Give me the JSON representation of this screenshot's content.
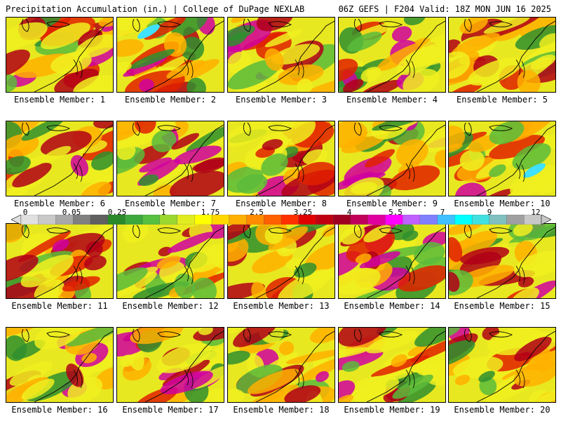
{
  "header": {
    "left_title": "Precipitation Accumulation (in.) | College of DuPage NEXLAB",
    "right_title": "06Z GEFS | F204 Valid: 18Z MON JUN 16 2025"
  },
  "members": [
    {
      "label": "Ensemble Member: 1"
    },
    {
      "label": "Ensemble Member: 2"
    },
    {
      "label": "Ensemble Member: 3"
    },
    {
      "label": "Ensemble Member: 4"
    },
    {
      "label": "Ensemble Member: 5"
    },
    {
      "label": "Ensemble Member: 6"
    },
    {
      "label": "Ensemble Member: 7"
    },
    {
      "label": "Ensemble Member: 8"
    },
    {
      "label": "Ensemble Member: 9"
    },
    {
      "label": "Ensemble Member: 10"
    },
    {
      "label": "Ensemble Member: 11"
    },
    {
      "label": "Ensemble Member: 12"
    },
    {
      "label": "Ensemble Member: 13"
    },
    {
      "label": "Ensemble Member: 14"
    },
    {
      "label": "Ensemble Member: 15"
    },
    {
      "label": "Ensemble Member: 16"
    },
    {
      "label": "Ensemble Member: 17"
    },
    {
      "label": "Ensemble Member: 18"
    },
    {
      "label": "Ensemble Member: 19"
    },
    {
      "label": "Ensemble Member: 20"
    }
  ],
  "colorbar": {
    "labels": [
      "0",
      "0.05",
      "0.25",
      "1",
      "1.75",
      "2.5",
      "3.25",
      "4",
      "5.5",
      "7",
      "9",
      "12"
    ],
    "colors": [
      "#e0e0e0",
      "#c8c8c8",
      "#a8a8a8",
      "#808080",
      "#606060",
      "#2a8a2a",
      "#3ca83c",
      "#58c040",
      "#9ad830",
      "#e0ec20",
      "#ffff00",
      "#ffd800",
      "#ffb000",
      "#ff8c00",
      "#ff6000",
      "#ff3000",
      "#e00000",
      "#c00010",
      "#a00020",
      "#c0005a",
      "#e000a0",
      "#ff00ff",
      "#c060ff",
      "#8080ff",
      "#40c0ff",
      "#00ffff",
      "#40e0e0",
      "#80c0c0",
      "#a0a0a0",
      "#c8c8c8"
    ]
  }
}
